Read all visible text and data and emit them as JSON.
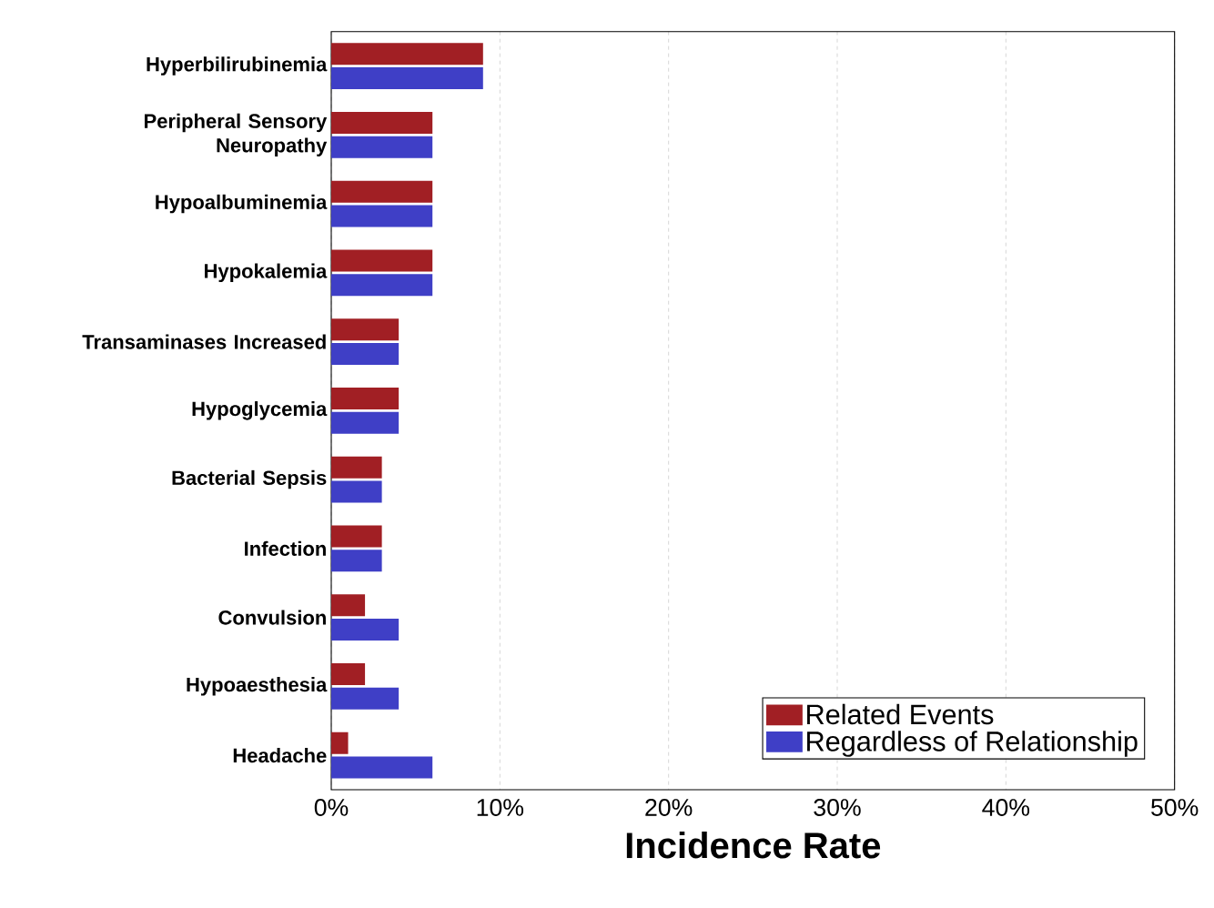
{
  "chart_data": {
    "type": "bar",
    "orientation": "horizontal",
    "xlabel": "Incidence Rate",
    "categories": [
      "Hyperbilirubinemia",
      "Peripheral Sensory Neuropathy",
      "Hypoalbuminemia",
      "Hypokalemia",
      "Transaminases Increased",
      "Hypoglycemia",
      "Bacterial Sepsis",
      "Infection",
      "Convulsion",
      "Hypoaesthesia",
      "Headache"
    ],
    "series": [
      {
        "name": "Related Events",
        "color": "#a11f24",
        "values": [
          9,
          6,
          6,
          6,
          4,
          4,
          3,
          3,
          2,
          2,
          1
        ]
      },
      {
        "name": "Regardless of Relationship",
        "color": "#3f3fc6",
        "values": [
          9,
          6,
          6,
          6,
          4,
          4,
          3,
          3,
          4,
          4,
          6
        ]
      }
    ],
    "xlim": [
      0,
      50
    ],
    "xticks": [
      {
        "value": 0,
        "label": "0%"
      },
      {
        "value": 10,
        "label": "10%"
      },
      {
        "value": 20,
        "label": "20%"
      },
      {
        "value": 30,
        "label": "30%"
      },
      {
        "value": 40,
        "label": "40%"
      },
      {
        "value": 50,
        "label": "50%"
      }
    ],
    "grid": "x",
    "legend": "bottom right"
  }
}
